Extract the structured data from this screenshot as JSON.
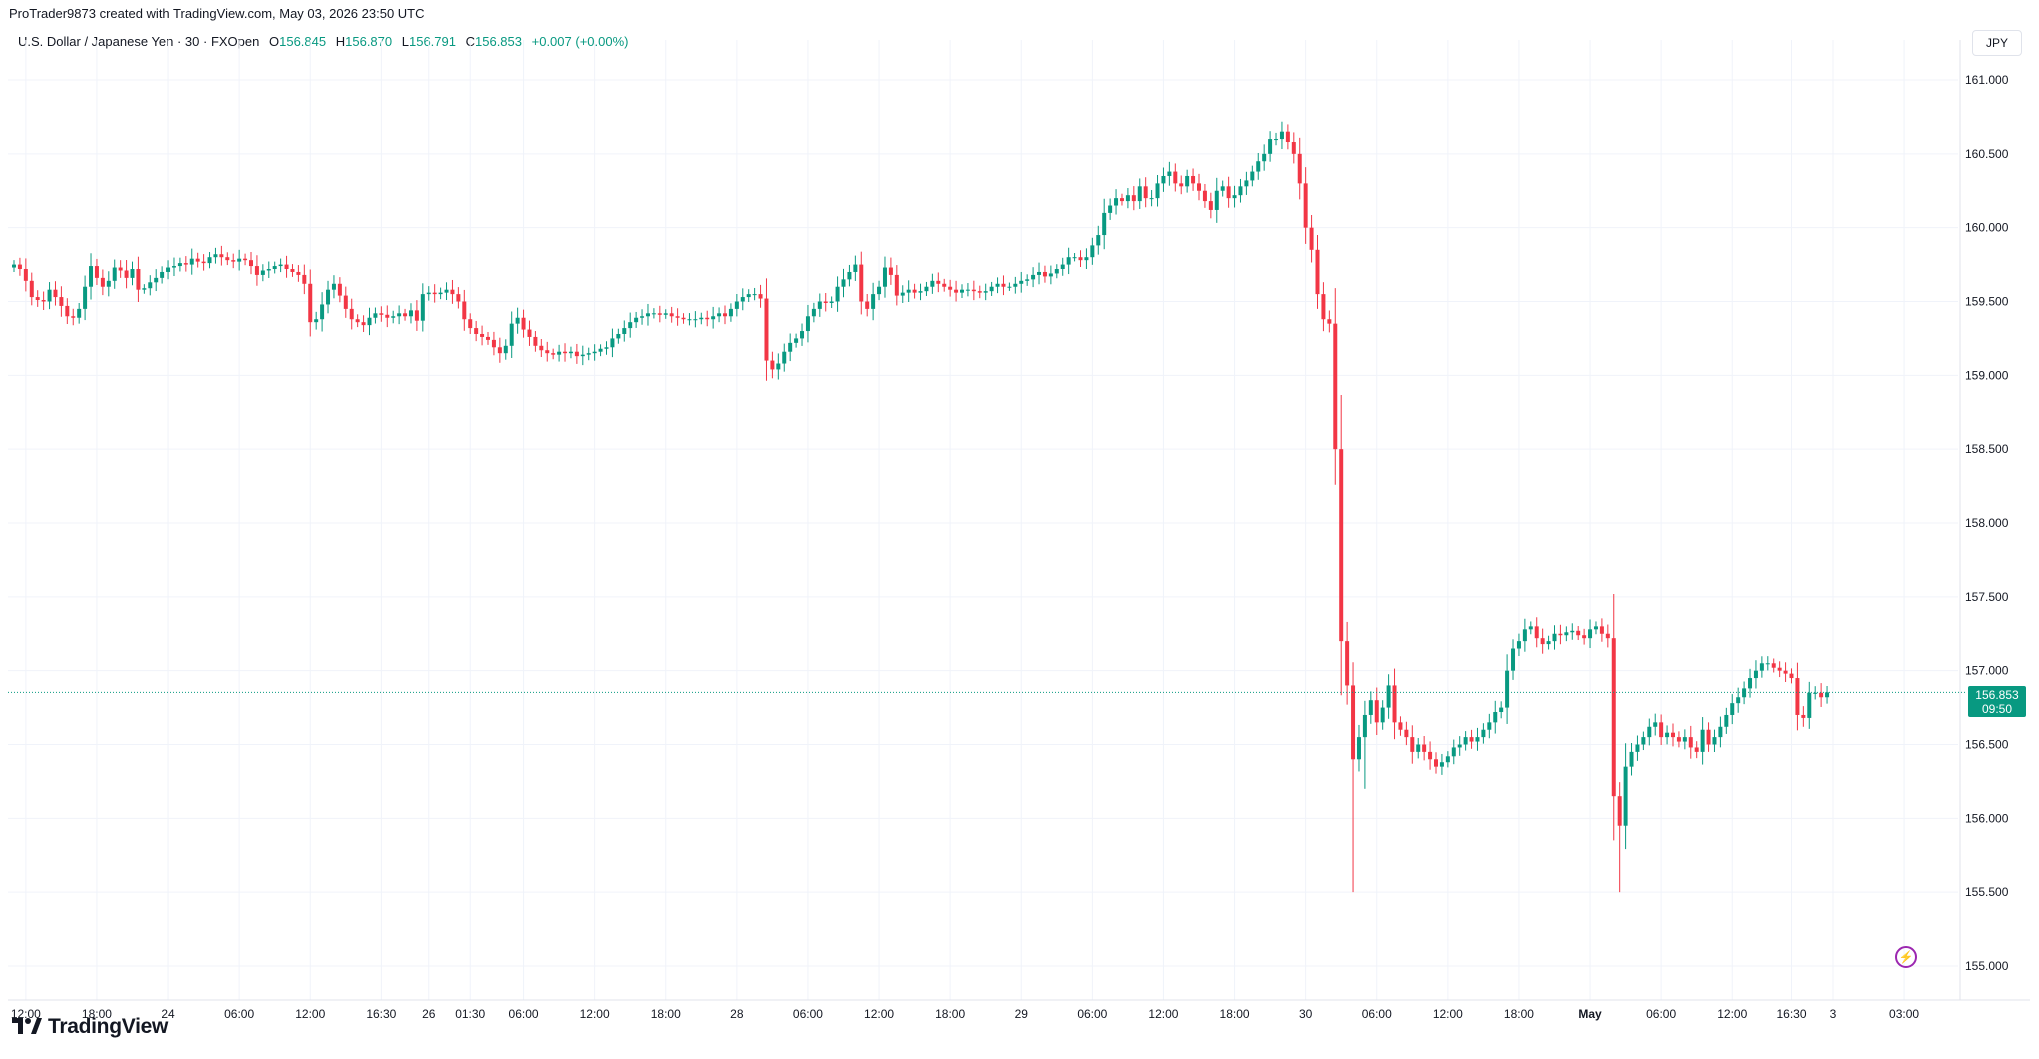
{
  "header": {
    "credit": "ProTrader9873 created with TradingView.com, May 03, 2026 23:50 UTC"
  },
  "legend": {
    "symbol": "U.S. Dollar / Japanese Yen · 30 · FXOpen",
    "open_label": "O",
    "open": "156.845",
    "high_label": "H",
    "high": "156.870",
    "low_label": "L",
    "low": "156.791",
    "close_label": "C",
    "close": "156.853",
    "change": "+0.007 (+0.00%)"
  },
  "currency": "JPY",
  "last_price": {
    "price": "156.853",
    "countdown": "09:50"
  },
  "brand": "TradingView",
  "colors": {
    "up": "#089981",
    "down": "#f23645",
    "grid": "#f0f3fa",
    "text": "#131722",
    "accent": "#9c27b0"
  },
  "icons": {
    "brand_logo": "tradingview-logo-icon",
    "alert": "lightning-icon"
  },
  "chart_data": {
    "type": "candlestick",
    "grid": true,
    "y_axis_side": "right",
    "ylim": [
      154.9,
      161.25
    ],
    "y_ticks": [
      "161.000",
      "160.500",
      "160.000",
      "159.500",
      "159.000",
      "158.500",
      "158.000",
      "157.500",
      "157.000",
      "156.500",
      "156.000",
      "155.500",
      "155.000"
    ],
    "x_ticks": [
      "12:00",
      "18:00",
      "24",
      "06:00",
      "12:00",
      "16:30",
      "26",
      "01:30",
      "06:00",
      "12:00",
      "18:00",
      "28",
      "06:00",
      "12:00",
      "18:00",
      "29",
      "06:00",
      "12:00",
      "18:00",
      "30",
      "06:00",
      "12:00",
      "18:00",
      "May",
      "06:00",
      "12:00",
      "16:30",
      "3",
      "03:00"
    ],
    "x_tick_index": [
      2,
      14,
      26,
      38,
      50,
      62,
      70,
      77,
      86,
      98,
      110,
      122,
      134,
      146,
      158,
      170,
      182,
      194,
      206,
      218,
      230,
      242,
      254,
      266,
      278,
      290,
      300,
      307,
      319
    ],
    "last_price_line": 156.853,
    "closes": [
      159.75,
      159.72,
      159.64,
      159.53,
      159.51,
      159.5,
      159.58,
      159.53,
      159.47,
      159.4,
      159.39,
      159.45,
      159.6,
      159.74,
      159.66,
      159.6,
      159.64,
      159.73,
      159.71,
      159.66,
      159.72,
      159.58,
      159.59,
      159.63,
      159.66,
      159.7,
      159.73,
      159.74,
      159.76,
      159.75,
      159.79,
      159.77,
      159.76,
      159.8,
      159.82,
      159.8,
      159.78,
      159.77,
      159.79,
      159.78,
      159.74,
      159.68,
      159.71,
      159.72,
      159.74,
      159.75,
      159.72,
      159.7,
      159.68,
      159.62,
      159.36,
      159.38,
      159.48,
      159.58,
      159.62,
      159.54,
      159.45,
      159.38,
      159.36,
      159.34,
      159.39,
      159.42,
      159.41,
      159.39,
      159.4,
      159.42,
      159.4,
      159.44,
      159.37,
      159.55,
      159.56,
      159.55,
      159.56,
      159.58,
      159.55,
      159.5,
      159.38,
      159.32,
      159.28,
      159.26,
      159.24,
      159.19,
      159.15,
      159.2,
      159.35,
      159.39,
      159.31,
      159.26,
      159.2,
      159.17,
      159.15,
      159.14,
      159.16,
      159.15,
      159.16,
      159.13,
      159.14,
      159.15,
      159.16,
      159.18,
      159.19,
      159.25,
      159.28,
      159.32,
      159.36,
      159.39,
      159.4,
      159.42,
      159.42,
      159.41,
      159.42,
      159.4,
      159.39,
      159.38,
      159.38,
      159.38,
      159.39,
      159.38,
      159.4,
      159.42,
      159.4,
      159.45,
      159.5,
      159.53,
      159.55,
      159.55,
      159.52,
      159.1,
      159.04,
      159.08,
      159.16,
      159.22,
      159.25,
      159.3,
      159.4,
      159.45,
      159.5,
      159.49,
      159.5,
      159.6,
      159.65,
      159.7,
      159.75,
      159.5,
      159.45,
      159.55,
      159.6,
      159.73,
      159.68,
      159.54,
      159.56,
      159.58,
      159.56,
      159.57,
      159.6,
      159.64,
      159.62,
      159.6,
      159.58,
      159.56,
      159.58,
      159.58,
      159.57,
      159.56,
      159.57,
      159.6,
      159.62,
      159.6,
      159.6,
      159.62,
      159.64,
      159.65,
      159.68,
      159.7,
      159.67,
      159.69,
      159.72,
      159.75,
      159.8,
      159.8,
      159.78,
      159.8,
      159.88,
      159.95,
      160.1,
      160.15,
      160.2,
      160.18,
      160.22,
      160.18,
      160.28,
      160.2,
      160.2,
      160.3,
      160.35,
      160.38,
      160.3,
      160.28,
      160.35,
      160.3,
      160.25,
      160.18,
      160.12,
      160.25,
      160.28,
      160.2,
      160.22,
      160.28,
      160.32,
      160.38,
      160.45,
      160.5,
      160.6,
      160.6,
      160.65,
      160.58,
      160.5,
      160.3,
      160.0,
      159.85,
      159.55,
      159.38,
      159.35,
      158.5,
      157.2,
      156.9,
      156.4,
      156.55,
      156.7,
      156.8,
      156.65,
      156.75,
      156.9,
      156.65,
      156.6,
      156.55,
      156.45,
      156.5,
      156.45,
      156.4,
      156.35,
      156.38,
      156.42,
      156.48,
      156.5,
      156.55,
      156.52,
      156.55,
      156.6,
      156.65,
      156.72,
      156.75,
      157.0,
      157.15,
      157.2,
      157.28,
      157.3,
      157.22,
      157.18,
      157.2,
      157.25,
      157.24,
      157.26,
      157.27,
      157.24,
      157.22,
      157.28,
      157.3,
      157.25,
      157.22,
      156.15,
      155.95,
      156.35,
      156.45,
      156.5,
      156.55,
      156.62,
      156.65,
      156.55,
      156.58,
      156.55,
      156.52,
      156.55,
      156.48,
      156.45,
      156.6,
      156.5,
      156.55,
      156.62,
      156.7,
      156.78,
      156.82,
      156.88,
      156.95,
      157.0,
      157.05,
      157.05,
      157.02,
      157.0,
      156.98,
      156.95,
      156.7,
      156.68,
      156.85,
      156.85,
      156.82,
      156.853
    ]
  }
}
